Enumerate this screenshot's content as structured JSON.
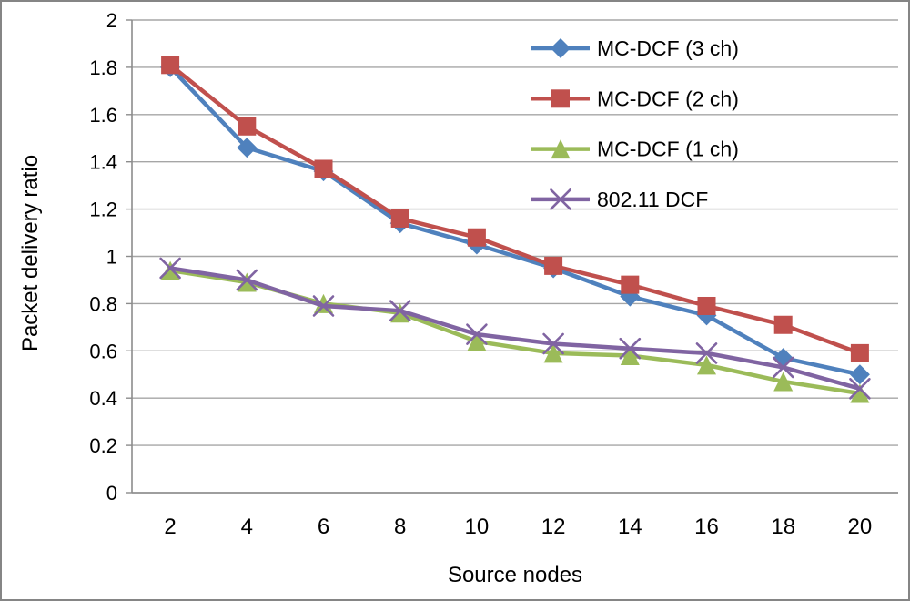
{
  "chart_data": {
    "type": "line",
    "title": "",
    "xlabel": "Source nodes",
    "ylabel": "Packet delivery ratio",
    "x": [
      2,
      4,
      6,
      8,
      10,
      12,
      14,
      16,
      18,
      20
    ],
    "x_tick_labels": [
      "2",
      "4",
      "6",
      "8",
      "10",
      "12",
      "14",
      "16",
      "18",
      "20"
    ],
    "ylim": [
      0,
      2
    ],
    "ytick_step": 0.2,
    "y_tick_labels": [
      "0",
      "0.2",
      "0.4",
      "0.6",
      "0.8",
      "1",
      "1.2",
      "1.4",
      "1.6",
      "1.8",
      "2"
    ],
    "grid": true,
    "legend_position": "top-right-inside",
    "series": [
      {
        "name": "MC-DCF (3 ch)",
        "color": "#4F81BD",
        "marker": "diamond",
        "values": [
          1.8,
          1.46,
          1.36,
          1.14,
          1.05,
          0.95,
          0.83,
          0.75,
          0.57,
          0.5
        ]
      },
      {
        "name": "MC-DCF (2 ch)",
        "color": "#C0504D",
        "marker": "square",
        "values": [
          1.81,
          1.55,
          1.37,
          1.16,
          1.08,
          0.96,
          0.88,
          0.79,
          0.71,
          0.59
        ]
      },
      {
        "name": "MC-DCF (1 ch)",
        "color": "#9BBB59",
        "marker": "triangle",
        "values": [
          0.94,
          0.89,
          0.8,
          0.76,
          0.64,
          0.59,
          0.58,
          0.54,
          0.47,
          0.42
        ]
      },
      {
        "name": "802.11 DCF",
        "color": "#8064A2",
        "marker": "x",
        "values": [
          0.95,
          0.9,
          0.79,
          0.77,
          0.67,
          0.63,
          0.61,
          0.59,
          0.53,
          0.44
        ]
      }
    ]
  },
  "colors": {
    "background": "#FFFFFF",
    "frame": "#858585",
    "gridline": "#A6A6A6",
    "axis": "#8C8C8C",
    "text": "#000000"
  }
}
